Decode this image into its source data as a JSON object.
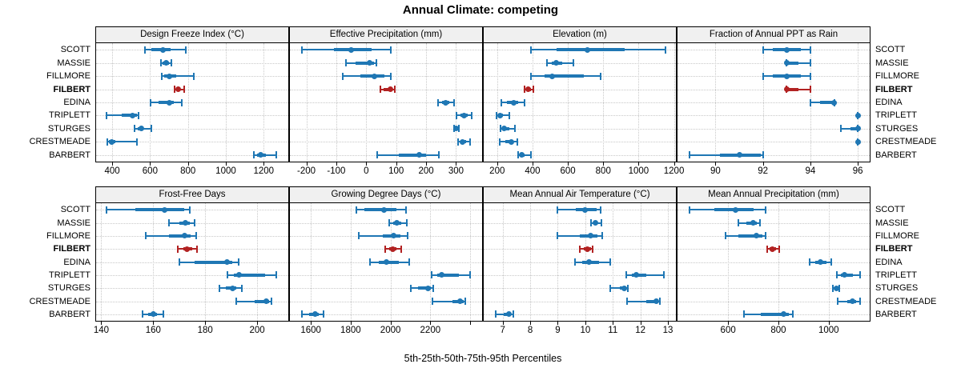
{
  "title": "Annual Climate: competing",
  "footer": "5th-25th-50th-75th-95th Percentiles",
  "sites": [
    "SCOTT",
    "MASSIE",
    "FILLMORE",
    "FILBERT",
    "EDINA",
    "TRIPLETT",
    "STURGES",
    "CRESTMEADE",
    "BARBERT"
  ],
  "highlight_site": "FILBERT",
  "colors": {
    "series_blue": "#1f77b4",
    "highlight_red": "#b22222",
    "header_bg": "#f0f0f0",
    "grid": "#c8c8c8",
    "border": "#000000"
  },
  "chart_data": {
    "type": "scatter",
    "subtype": "trellis-percentile-interval-dotplot",
    "title": "Annual Climate: competing",
    "xlabel": "5th-25th-50th-75th-95th Percentiles",
    "categories": [
      "SCOTT",
      "MASSIE",
      "FILLMORE",
      "FILBERT",
      "EDINA",
      "TRIPLETT",
      "STURGES",
      "CRESTMEADE",
      "BARBERT"
    ],
    "highlight": "FILBERT",
    "percentiles": [
      5,
      25,
      50,
      75,
      95
    ],
    "grid": "dotted",
    "layout_rows": 2,
    "layout_cols": 4,
    "panels": [
      {
        "title": "Design Freeze Index (°C)",
        "row": 0,
        "col": 0,
        "xlim": [
          315,
          1330
        ],
        "ticks": [
          400,
          600,
          800,
          1000,
          1200
        ],
        "tick_labels": [
          "400",
          "600",
          "800",
          "1000",
          "1200"
        ],
        "series": [
          {
            "name": "SCOTT",
            "values": [
              575,
              605,
              668,
              710,
              787
            ]
          },
          {
            "name": "MASSIE",
            "values": [
              657,
              668,
              683,
              700,
              712
            ]
          },
          {
            "name": "FILLMORE",
            "values": [
              662,
              675,
              701,
              738,
              833
            ]
          },
          {
            "name": "FILBERT",
            "values": [
              731,
              740,
              748,
              760,
              780
            ]
          },
          {
            "name": "EDINA",
            "values": [
              601,
              645,
              701,
              725,
              769
            ]
          },
          {
            "name": "TRIPLETT",
            "values": [
              371,
              452,
              509,
              529,
              540
            ]
          },
          {
            "name": "STURGES",
            "values": [
              519,
              535,
              554,
              565,
              605
            ]
          },
          {
            "name": "CRESTMEADE",
            "values": [
              375,
              382,
              399,
              417,
              532
            ]
          },
          {
            "name": "BARBERT",
            "values": [
              1150,
              1165,
              1186,
              1210,
              1266
            ]
          }
        ]
      },
      {
        "title": "Effective Precipitation (mm)",
        "row": 0,
        "col": 1,
        "xlim": [
          -255,
          387
        ],
        "ticks": [
          -200,
          -100,
          0,
          100,
          200,
          300
        ],
        "tick_labels": [
          "-200",
          "-100",
          "0",
          "100",
          "200",
          "300"
        ],
        "series": [
          {
            "name": "SCOTT",
            "values": [
              -216,
              -107,
              -50,
              17,
              83
            ]
          },
          {
            "name": "MASSIE",
            "values": [
              -69,
              -35,
              11,
              25,
              34
            ]
          },
          {
            "name": "FILLMORE",
            "values": [
              -78,
              -20,
              28,
              60,
              83
            ]
          },
          {
            "name": "FILBERT",
            "values": [
              48,
              58,
              82,
              88,
              95
            ]
          },
          {
            "name": "EDINA",
            "values": [
              241,
              252,
              264,
              277,
              294
            ]
          },
          {
            "name": "TRIPLETT",
            "values": [
              302,
              314,
              326,
              338,
              353
            ]
          },
          {
            "name": "STURGES",
            "values": [
              293,
              296,
              300,
              305,
              309
            ]
          },
          {
            "name": "CRESTMEADE",
            "values": [
              306,
              314,
              322,
              334,
              348
            ]
          },
          {
            "name": "BARBERT",
            "values": [
              37,
              110,
              176,
              200,
              242
            ]
          }
        ]
      },
      {
        "title": "Elevation (m)",
        "row": 0,
        "col": 2,
        "xlim": [
          124,
          1211
        ],
        "ticks": [
          200,
          400,
          600,
          800,
          1000,
          1200
        ],
        "tick_labels": [
          "200",
          "400",
          "600",
          "800",
          "1000",
          "1200"
        ],
        "series": [
          {
            "name": "SCOTT",
            "values": [
              392,
              537,
              709,
              919,
              1151
            ]
          },
          {
            "name": "MASSIE",
            "values": [
              480,
              508,
              534,
              570,
              631
            ]
          },
          {
            "name": "FILLMORE",
            "values": [
              392,
              470,
              510,
              690,
              784
            ]
          },
          {
            "name": "FILBERT",
            "values": [
              354,
              363,
              377,
              392,
              407
            ]
          },
          {
            "name": "EDINA",
            "values": [
              222,
              255,
              294,
              320,
              354
            ]
          },
          {
            "name": "TRIPLETT",
            "values": [
              196,
              205,
              215,
              235,
              267
            ]
          },
          {
            "name": "STURGES",
            "values": [
              217,
              228,
              241,
              268,
              301
            ]
          },
          {
            "name": "CRESTMEADE",
            "values": [
              215,
              245,
              278,
              292,
              312
            ]
          },
          {
            "name": "BARBERT",
            "values": [
              319,
              328,
              337,
              355,
              392
            ]
          }
        ]
      },
      {
        "title": "Fraction of Annual PPT as Rain",
        "row": 0,
        "col": 3,
        "xlim": [
          88.4,
          96.5
        ],
        "ticks": [
          90,
          92,
          94,
          96
        ],
        "tick_labels": [
          "90",
          "92",
          "94",
          "96"
        ],
        "series": [
          {
            "name": "SCOTT",
            "values": [
              92,
              92.4,
              93,
              93.6,
              94
            ]
          },
          {
            "name": "MASSIE",
            "values": [
              93,
              93,
              93,
              93.5,
              94
            ]
          },
          {
            "name": "FILLMORE",
            "values": [
              92,
              92.4,
              93,
              93.6,
              94
            ]
          },
          {
            "name": "FILBERT",
            "values": [
              93,
              93,
              93,
              93.5,
              94
            ]
          },
          {
            "name": "EDINA",
            "values": [
              94,
              94.4,
              95,
              95,
              95
            ]
          },
          {
            "name": "TRIPLETT",
            "values": [
              96,
              96,
              96,
              96,
              96
            ]
          },
          {
            "name": "STURGES",
            "values": [
              95.3,
              95.7,
              96,
              96,
              96
            ]
          },
          {
            "name": "CRESTMEADE",
            "values": [
              96,
              96,
              96,
              96,
              96
            ]
          },
          {
            "name": "BARBERT",
            "values": [
              88.9,
              90.2,
              91,
              91.9,
              92
            ]
          }
        ]
      },
      {
        "title": "Frost-Free Days",
        "row": 1,
        "col": 0,
        "xlim": [
          138,
          212
        ],
        "ticks": [
          140,
          160,
          180,
          200
        ],
        "tick_labels": [
          "140",
          "160",
          "180",
          "200"
        ],
        "series": [
          {
            "name": "SCOTT",
            "values": [
              142,
              153,
              164.5,
              172,
              174
            ]
          },
          {
            "name": "MASSIE",
            "values": [
              166,
              170,
              172.5,
              174,
              176
            ]
          },
          {
            "name": "FILLMORE",
            "values": [
              157,
              166,
              172,
              174.5,
              176.5
            ]
          },
          {
            "name": "FILBERT",
            "values": [
              169.5,
              171.5,
              173,
              175,
              177
            ]
          },
          {
            "name": "EDINA",
            "values": [
              170,
              176,
              188.5,
              190.5,
              193
            ]
          },
          {
            "name": "TRIPLETT",
            "values": [
              188.5,
              191,
              193,
              203,
              207.5
            ]
          },
          {
            "name": "STURGES",
            "values": [
              185.5,
              188,
              190.5,
              192,
              194
            ]
          },
          {
            "name": "CRESTMEADE",
            "values": [
              192,
              199,
              203.5,
              204.5,
              205.5
            ]
          },
          {
            "name": "BARBERT",
            "values": [
              156,
              158,
              160,
              161.5,
              164
            ]
          }
        ]
      },
      {
        "title": "Growing Degree Days (°C)",
        "row": 1,
        "col": 1,
        "xlim": [
          1495,
          2460
        ],
        "ticks": [
          1600,
          1800,
          2000,
          2200,
          2400
        ],
        "tick_labels": [
          "1600",
          "1800",
          "2000",
          "2200",
          ""
        ],
        "series": [
          {
            "name": "SCOTT",
            "values": [
              1827,
              1870,
              1966,
              2030,
              2079
            ]
          },
          {
            "name": "MASSIE",
            "values": [
              1995,
              2012,
              2033,
              2052,
              2082
            ]
          },
          {
            "name": "FILLMORE",
            "values": [
              1841,
              1960,
              2014,
              2050,
              2086
            ]
          },
          {
            "name": "FILBERT",
            "values": [
              1974,
              1995,
              2012,
              2030,
              2054
            ]
          },
          {
            "name": "EDINA",
            "values": [
              1899,
              1940,
              1979,
              2040,
              2093
            ]
          },
          {
            "name": "TRIPLETT",
            "values": [
              2207,
              2235,
              2258,
              2345,
              2400
            ]
          },
          {
            "name": "STURGES",
            "values": [
              2104,
              2140,
              2187,
              2204,
              2214
            ]
          },
          {
            "name": "CRESTMEADE",
            "values": [
              2211,
              2310,
              2351,
              2368,
              2377
            ]
          },
          {
            "name": "BARBERT",
            "values": [
              1554,
              1590,
              1620,
              1640,
              1664
            ]
          }
        ]
      },
      {
        "title": "Mean Annual Air Temperature (°C)",
        "row": 1,
        "col": 2,
        "xlim": [
          6.31,
          13.29
        ],
        "ticks": [
          7,
          8,
          9,
          10,
          11,
          12,
          13
        ],
        "tick_labels": [
          "7",
          "8",
          "9",
          "10",
          "11",
          "12",
          "13"
        ],
        "series": [
          {
            "name": "SCOTT",
            "values": [
              9.0,
              9.65,
              10.0,
              10.4,
              10.55
            ]
          },
          {
            "name": "MASSIE",
            "values": [
              10.2,
              10.28,
              10.36,
              10.45,
              10.58
            ]
          },
          {
            "name": "FILLMORE",
            "values": [
              9.0,
              9.8,
              10.2,
              10.45,
              10.6
            ]
          },
          {
            "name": "FILBERT",
            "values": [
              9.8,
              9.95,
              10.08,
              10.2,
              10.27
            ]
          },
          {
            "name": "EDINA",
            "values": [
              9.63,
              9.9,
              10.14,
              10.5,
              10.9
            ]
          },
          {
            "name": "TRIPLETT",
            "values": [
              11.5,
              11.7,
              11.86,
              12.2,
              12.84
            ]
          },
          {
            "name": "STURGES",
            "values": [
              10.9,
              11.25,
              11.41,
              11.48,
              11.55
            ]
          },
          {
            "name": "CRESTMEADE",
            "values": [
              11.53,
              12.2,
              12.58,
              12.65,
              12.71
            ]
          },
          {
            "name": "BARBERT",
            "values": [
              6.75,
              7.05,
              7.22,
              7.3,
              7.38
            ]
          }
        ]
      },
      {
        "title": "Mean Annual Precipitation (mm)",
        "row": 1,
        "col": 3,
        "xlim": [
          399,
          1163
        ],
        "ticks": [
          600,
          800,
          1000
        ],
        "tick_labels": [
          "600",
          "800",
          "1000"
        ],
        "series": [
          {
            "name": "SCOTT",
            "values": [
              446,
              545,
              631,
              703,
              749
            ]
          },
          {
            "name": "MASSIE",
            "values": [
              640,
              672,
              701,
              715,
              727
            ]
          },
          {
            "name": "FILLMORE",
            "values": [
              589,
              640,
              712,
              735,
              749
            ]
          },
          {
            "name": "FILBERT",
            "values": [
              755,
              765,
              777,
              790,
              803
            ]
          },
          {
            "name": "EDINA",
            "values": [
              923,
              945,
              968,
              990,
              1009
            ]
          },
          {
            "name": "TRIPLETT",
            "values": [
              1032,
              1048,
              1064,
              1095,
              1125
            ]
          },
          {
            "name": "STURGES",
            "values": [
              1016,
              1023,
              1030,
              1036,
              1043
            ]
          },
          {
            "name": "CRESTMEADE",
            "values": [
              1035,
              1075,
              1096,
              1110,
              1125
            ]
          },
          {
            "name": "BARBERT",
            "values": [
              664,
              730,
              820,
              843,
              857
            ]
          }
        ]
      }
    ]
  }
}
